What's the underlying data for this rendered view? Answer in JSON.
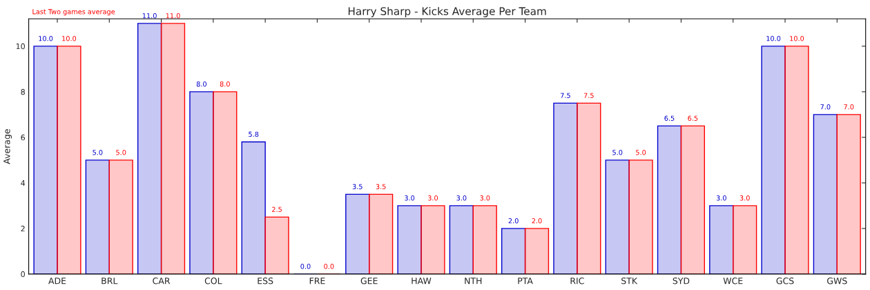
{
  "chart_data": {
    "type": "bar",
    "title": "Harry Sharp - Kicks Average Per Team",
    "ylabel": "Average",
    "categories": [
      "ADE",
      "BRL",
      "CAR",
      "COL",
      "ESS",
      "FRE",
      "GEE",
      "HAW",
      "NTH",
      "PTA",
      "RIC",
      "STK",
      "SYD",
      "WCE",
      "GCS",
      "GWS"
    ],
    "series": [
      {
        "color": "#0000cc",
        "values": [
          10,
          5,
          11,
          8,
          5.8,
          0,
          3.5,
          3,
          3,
          2,
          7.5,
          5,
          6.5,
          3,
          10,
          7
        ],
        "value_labels": [
          "10.0",
          "5.0",
          "11.0",
          "8.0",
          "5.8",
          "0.0",
          "3.5",
          "3.0",
          "3.0",
          "2.0",
          "7.5",
          "5.0",
          "6.5",
          "3.0",
          "10.0",
          "7.0"
        ]
      },
      {
        "name": "Last Two games average",
        "color": "#ff0000",
        "values": [
          10,
          5,
          11,
          8,
          2.5,
          0,
          3.5,
          3,
          3,
          2,
          7.5,
          5,
          6.5,
          3,
          10,
          7
        ],
        "value_labels": [
          "10.0",
          "5.0",
          "11.0",
          "8.0",
          "2.5",
          "0.0",
          "3.5",
          "3.0",
          "3.0",
          "2.0",
          "7.5",
          "5.0",
          "6.5",
          "3.0",
          "10.0",
          "7.0"
        ]
      }
    ],
    "ylim": [
      0,
      11.2
    ],
    "yticks": [
      0,
      2,
      4,
      6,
      8,
      10
    ],
    "legend": "top left",
    "grid": false
  }
}
